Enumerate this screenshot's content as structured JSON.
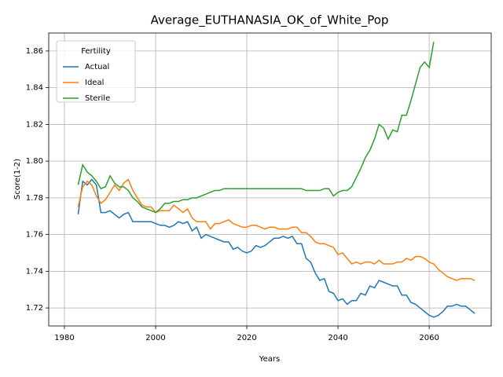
{
  "chart_data": {
    "type": "line",
    "title": "Average_EUTHANASIA_OK_of_White_Pop",
    "x_label": "Years",
    "y_label": "Score(1-2)",
    "legend_title": "Fertility",
    "legend_position": "upper left",
    "grid": true,
    "x": [
      1983,
      1984,
      1985,
      1986,
      1987,
      1988,
      1989,
      1990,
      1991,
      1992,
      1993,
      1994,
      1995,
      1996,
      1997,
      1998,
      1999,
      2000,
      2001,
      2002,
      2003,
      2004,
      2005,
      2006,
      2007,
      2008,
      2009,
      2010,
      2011,
      2012,
      2013,
      2014,
      2015,
      2016,
      2017,
      2018,
      2019,
      2020,
      2021,
      2022,
      2023,
      2024,
      2025,
      2026,
      2027,
      2028,
      2029,
      2030,
      2031,
      2032,
      2033,
      2034,
      2035,
      2036,
      2037,
      2038,
      2039,
      2040,
      2041,
      2042,
      2043,
      2044,
      2045,
      2046,
      2047,
      2048,
      2049,
      2050,
      2051,
      2052,
      2053,
      2054,
      2055,
      2056,
      2057,
      2058,
      2059,
      2060,
      2061,
      2062,
      2063,
      2064,
      2065,
      2066,
      2067,
      2068,
      2069,
      2070
    ],
    "series": [
      {
        "name": "Actual",
        "color": "#1f77b4",
        "values": [
          1.771,
          1.789,
          1.787,
          1.79,
          1.787,
          1.772,
          1.772,
          1.773,
          1.771,
          1.769,
          1.771,
          1.772,
          1.767,
          1.767,
          1.767,
          1.767,
          1.767,
          1.766,
          1.765,
          1.765,
          1.764,
          1.765,
          1.767,
          1.766,
          1.767,
          1.762,
          1.764,
          1.758,
          1.76,
          1.759,
          1.758,
          1.757,
          1.756,
          1.756,
          1.752,
          1.753,
          1.751,
          1.75,
          1.751,
          1.754,
          1.753,
          1.754,
          1.756,
          1.758,
          1.758,
          1.759,
          1.758,
          1.759,
          1.755,
          1.755,
          1.747,
          1.745,
          1.739,
          1.735,
          1.736,
          1.729,
          1.728,
          1.724,
          1.725,
          1.722,
          1.724,
          1.724,
          1.728,
          1.727,
          1.732,
          1.731,
          1.735,
          1.734,
          1.733,
          1.732,
          1.732,
          1.727,
          1.727,
          1.723,
          1.722,
          1.72,
          1.718,
          1.716,
          1.715,
          1.716,
          1.718,
          1.721,
          1.721,
          1.722,
          1.721,
          1.721,
          1.719,
          1.717
        ]
      },
      {
        "name": "Ideal",
        "color": "#ff7f0e",
        "values": [
          1.775,
          1.786,
          1.789,
          1.787,
          1.781,
          1.777,
          1.779,
          1.783,
          1.787,
          1.784,
          1.788,
          1.79,
          1.784,
          1.78,
          1.776,
          1.775,
          1.775,
          1.772,
          1.773,
          1.773,
          1.773,
          1.776,
          1.774,
          1.772,
          1.774,
          1.769,
          1.767,
          1.767,
          1.767,
          1.763,
          1.766,
          1.766,
          1.767,
          1.768,
          1.766,
          1.765,
          1.764,
          1.764,
          1.765,
          1.765,
          1.764,
          1.763,
          1.764,
          1.764,
          1.763,
          1.763,
          1.763,
          1.764,
          1.764,
          1.761,
          1.761,
          1.759,
          1.756,
          1.755,
          1.755,
          1.754,
          1.753,
          1.749,
          1.75,
          1.747,
          1.744,
          1.745,
          1.744,
          1.745,
          1.745,
          1.744,
          1.746,
          1.744,
          1.744,
          1.744,
          1.745,
          1.745,
          1.747,
          1.746,
          1.748,
          1.748,
          1.747,
          1.745,
          1.744,
          1.741,
          1.739,
          1.737,
          1.736,
          1.735,
          1.736,
          1.736,
          1.736,
          1.735
        ]
      },
      {
        "name": "Sterile",
        "color": "#2ca02c",
        "values": [
          1.787,
          1.798,
          1.794,
          1.792,
          1.789,
          1.785,
          1.786,
          1.792,
          1.788,
          1.786,
          1.786,
          1.784,
          1.78,
          1.778,
          1.775,
          1.774,
          1.773,
          1.772,
          1.774,
          1.777,
          1.777,
          1.778,
          1.778,
          1.779,
          1.779,
          1.78,
          1.78,
          1.781,
          1.782,
          1.783,
          1.784,
          1.784,
          1.785,
          1.785,
          1.785,
          1.785,
          1.785,
          1.785,
          1.785,
          1.785,
          1.785,
          1.785,
          1.785,
          1.785,
          1.785,
          1.785,
          1.785,
          1.785,
          1.785,
          1.785,
          1.784,
          1.784,
          1.784,
          1.784,
          1.785,
          1.785,
          1.781,
          1.783,
          1.784,
          1.784,
          1.786,
          1.791,
          1.796,
          1.802,
          1.806,
          1.812,
          1.82,
          1.818,
          1.812,
          1.817,
          1.816,
          1.825,
          1.825,
          1.833,
          1.842,
          1.851,
          1.854,
          1.851,
          1.865,
          null,
          null,
          null,
          null,
          null,
          null,
          null,
          null,
          null
        ]
      }
    ],
    "xlim": [
      1976.55,
      2073.6
    ],
    "xticks": [
      1980,
      2000,
      2020,
      2040,
      2060
    ],
    "ylim": [
      1.7102,
      1.8698
    ],
    "yticks": [
      1.72,
      1.74,
      1.76,
      1.78,
      {
        "value": 1.8,
        "label": "1.80"
      },
      1.82,
      1.84,
      1.86
    ]
  }
}
